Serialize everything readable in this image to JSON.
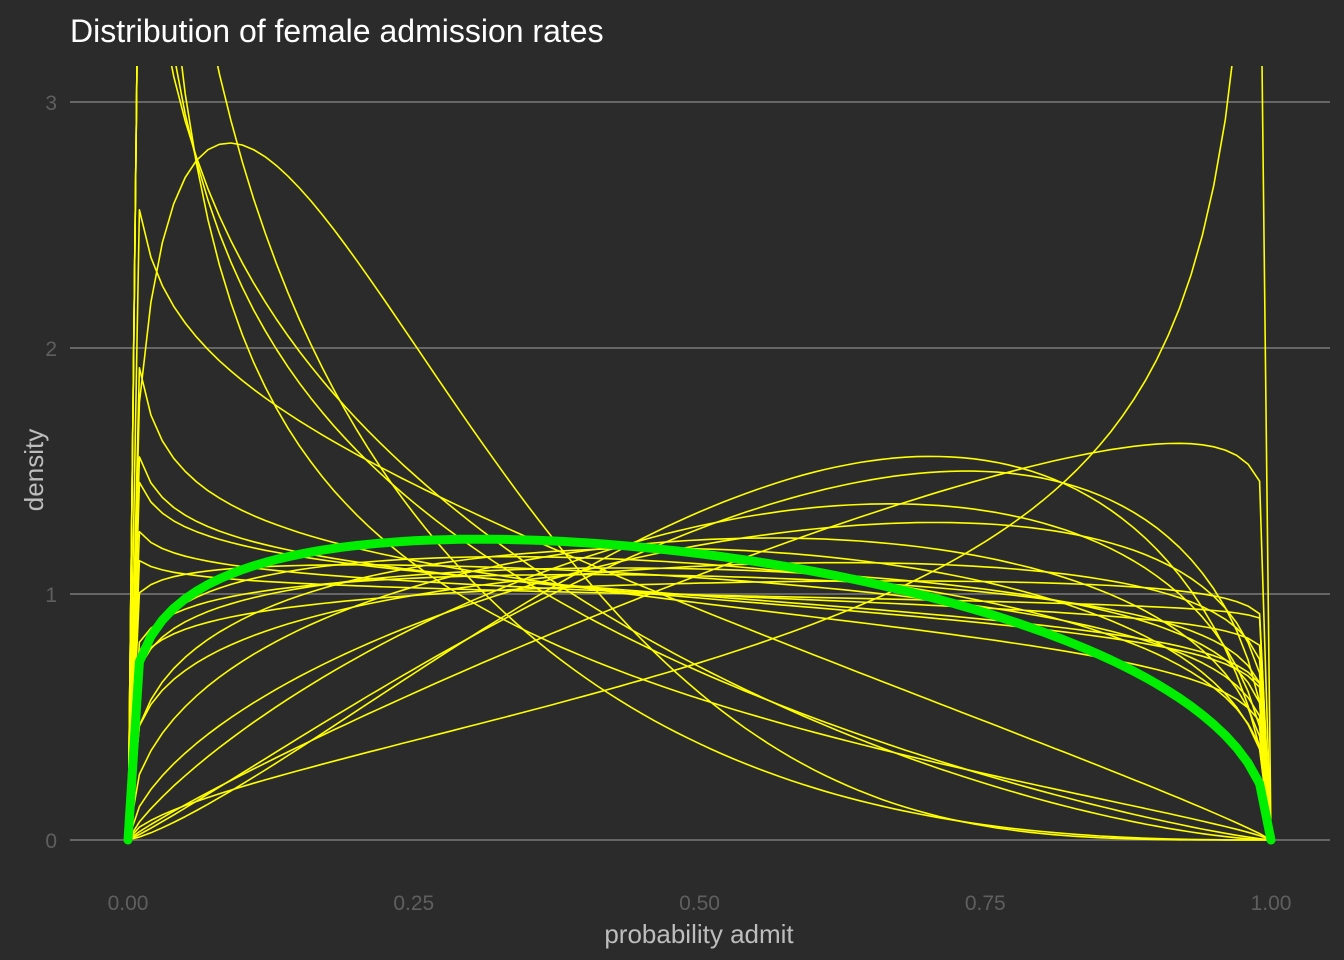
{
  "chart_data": {
    "type": "line",
    "title": "Distribution of female admission rates",
    "xlabel": "probability admit",
    "ylabel": "density",
    "xlim": [
      0,
      1
    ],
    "ylim": [
      0,
      3.15
    ],
    "x_ticks": [
      0,
      0.25,
      0.5,
      0.75,
      1.0
    ],
    "x_tick_labels": [
      "0.00",
      "0.25",
      "0.50",
      "0.75",
      "1.00"
    ],
    "y_ticks": [
      0,
      1,
      2,
      3
    ],
    "y_tick_labels": [
      "0",
      "1",
      "2",
      "3"
    ],
    "grid": "horizontal major only",
    "colors": {
      "background": "#2b2b2b",
      "gridline": "#7a7a7a",
      "sample_lines": "#ffff00",
      "mean_line": "#00ee00",
      "title": "#ffffff",
      "axis_title": "#bdbdbd",
      "tick_label": "#5f5f5f"
    },
    "series": [
      {
        "role": "sample",
        "alpha": 0.7,
        "beta": 3.5
      },
      {
        "role": "sample",
        "alpha": 0.7,
        "beta": 2.2
      },
      {
        "role": "sample",
        "alpha": 0.5,
        "beta": 1.8
      },
      {
        "role": "sample",
        "alpha": 0.8,
        "beta": 2.5
      },
      {
        "role": "sample",
        "alpha": 0.9,
        "beta": 1.9
      },
      {
        "role": "sample",
        "alpha": 1.35,
        "beta": 4.6
      },
      {
        "role": "sample",
        "alpha": 0.85,
        "beta": 1.15
      },
      {
        "role": "sample",
        "alpha": 0.9,
        "beta": 1.1
      },
      {
        "role": "sample",
        "alpha": 0.95,
        "beta": 1.05
      },
      {
        "role": "sample",
        "alpha": 0.92,
        "beta": 1.1
      },
      {
        "role": "sample",
        "alpha": 0.97,
        "beta": 1.02
      },
      {
        "role": "sample",
        "alpha": 1.15,
        "beta": 1.3
      },
      {
        "role": "sample",
        "alpha": 1.1,
        "beta": 1.15
      },
      {
        "role": "sample",
        "alpha": 1.05,
        "beta": 1.2
      },
      {
        "role": "sample",
        "alpha": 1.15,
        "beta": 1.2
      },
      {
        "role": "sample",
        "alpha": 1.3,
        "beta": 1.35
      },
      {
        "role": "sample",
        "alpha": 1.45,
        "beta": 1.35
      },
      {
        "role": "sample",
        "alpha": 1.25,
        "beta": 1.15
      },
      {
        "role": "sample",
        "alpha": 1.1,
        "beta": 1.05
      },
      {
        "role": "sample",
        "alpha": 1.6,
        "beta": 1.25
      },
      {
        "role": "sample",
        "alpha": 1.8,
        "beta": 1.4
      },
      {
        "role": "sample",
        "alpha": 2.1,
        "beta": 1.4
      },
      {
        "role": "sample",
        "alpha": 2.3,
        "beta": 1.55
      },
      {
        "role": "sample",
        "alpha": 1.9,
        "beta": 1.08
      },
      {
        "role": "sample",
        "alpha": 1.6,
        "beta": 0.6
      },
      {
        "role": "mean",
        "alpha": 1.2,
        "beta": 1.45
      }
    ]
  }
}
